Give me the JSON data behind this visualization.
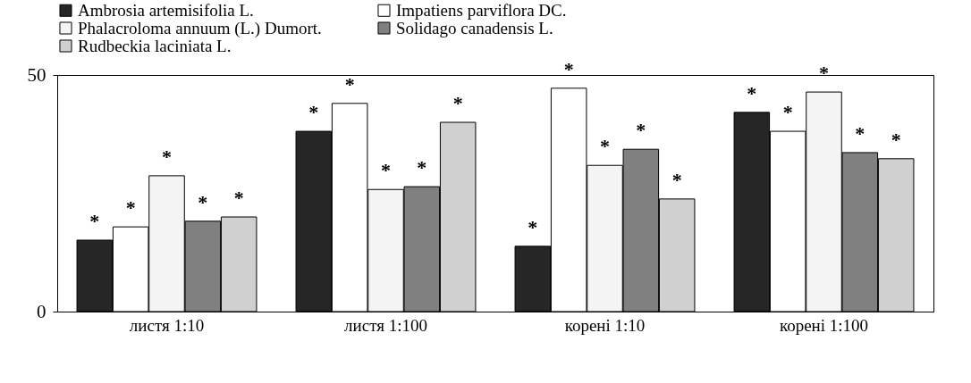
{
  "chart_data": {
    "type": "bar",
    "categories": [
      "листя 1:10",
      "листя 1:100",
      "корені 1:10",
      "корені 1:100"
    ],
    "series": [
      {
        "name": "Ambrosia artemisifolia L.",
        "color": "#262626",
        "values": [
          15.1,
          38.1,
          13.8,
          42.1
        ],
        "value_labels": [
          "*",
          "*",
          "*",
          "*"
        ]
      },
      {
        "name": "Impatiens parviflora DC.",
        "color": "#ffffff",
        "values": [
          17.9,
          44,
          47.2,
          38.1
        ],
        "value_labels": [
          "*",
          "*",
          "*",
          "*"
        ]
      },
      {
        "name": "Phalacroloma annuum (L.) Dumort.",
        "color": "#f4f4f4",
        "values": [
          28.7,
          25.8,
          30.9,
          46.4
        ],
        "value_labels": [
          "*",
          "*",
          "*",
          "*"
        ]
      },
      {
        "name": "Solidago canadensis L.",
        "color": "#808080",
        "values": [
          19.1,
          26.4,
          34.3,
          33.6
        ],
        "value_labels": [
          "*",
          "*",
          "*",
          "*"
        ]
      },
      {
        "name": "Rudbeckia laciniata L.",
        "color": "#d0d0d0",
        "values": [
          20,
          40,
          23.8,
          32.3
        ],
        "value_labels": [
          "*",
          "*",
          "*",
          "*"
        ]
      }
    ],
    "ylim": [
      0,
      50
    ],
    "yticks": [
      0,
      50
    ],
    "legend": "top left",
    "grid": false
  }
}
